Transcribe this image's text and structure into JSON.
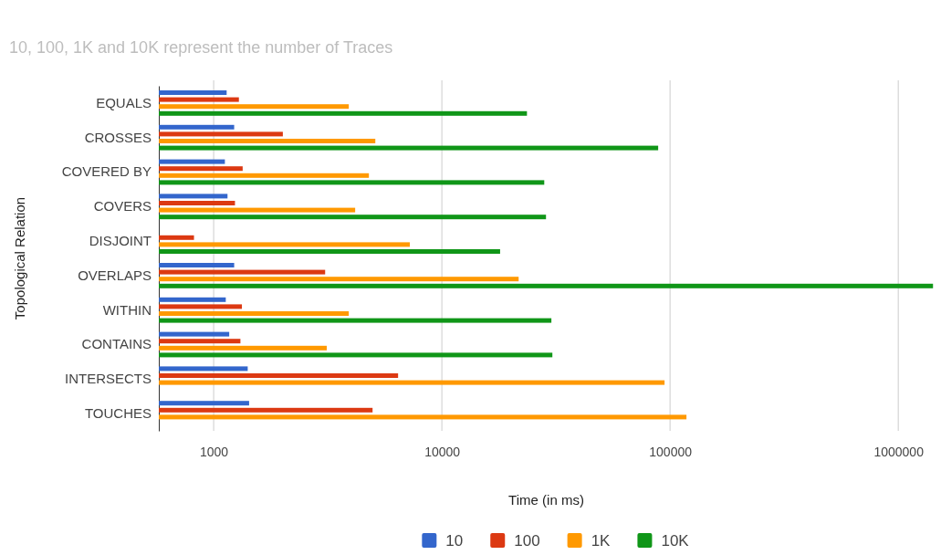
{
  "chart_data": {
    "type": "bar",
    "orientation": "horizontal",
    "subtitle": "10, 100, 1K and 10K represent the number of Traces",
    "xlabel": "Time (in ms)",
    "ylabel": "Topological Relation",
    "categories": [
      "EQUALS",
      "CROSSES",
      "COVERED BY",
      "COVERS",
      "DISJOINT",
      "OVERLAPS",
      "WITHIN",
      "CONTAINS",
      "INTERSECTS",
      "TOUCHES"
    ],
    "series": [
      {
        "name": "10",
        "color": "#3366cc",
        "values": [
          1140,
          1230,
          1120,
          1150,
          null,
          1230,
          1130,
          1170,
          1410,
          1430
        ]
      },
      {
        "name": "100",
        "color": "#dc3912",
        "values": [
          1290,
          2010,
          1340,
          1240,
          820,
          3080,
          1330,
          1310,
          6430,
          4970
        ]
      },
      {
        "name": "1K",
        "color": "#ff9900",
        "values": [
          3910,
          5110,
          4790,
          4170,
          7240,
          21700,
          3910,
          3130,
          94600,
          118000
        ]
      },
      {
        "name": "10K",
        "color": "#109618",
        "values": [
          23600,
          88700,
          28100,
          28600,
          18000,
          1420000,
          30200,
          30500,
          null,
          null
        ]
      }
    ],
    "log": "x",
    "xlim": [
      575,
      1430000
    ],
    "xticks": [
      1000,
      10000,
      100000,
      1000000
    ],
    "grid": "x",
    "legend": "bottom"
  }
}
